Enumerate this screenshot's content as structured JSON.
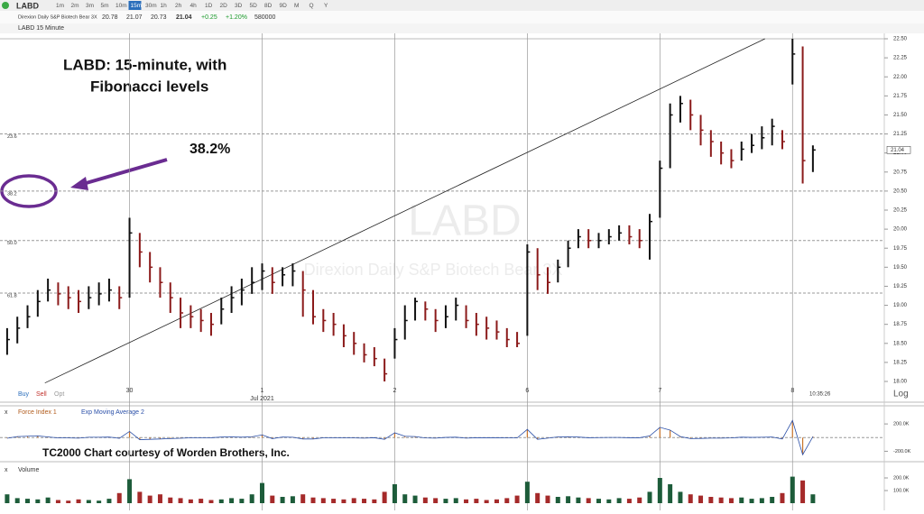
{
  "toolbar": {
    "symbol": "LABD",
    "timeframes": [
      "1m",
      "2m",
      "3m",
      "5m",
      "10m",
      "15m",
      "30m",
      "1h",
      "2h",
      "4h",
      "1D",
      "2D",
      "3D",
      "5D",
      "8D",
      "9D",
      "M",
      "Q",
      "Y"
    ],
    "active": 5
  },
  "quote": {
    "name": "Direxion Daily S&P Biotech Bear 3X",
    "fields": [
      "20.78",
      "21.07",
      "20.73",
      "21.04",
      "+0.25",
      "+1.20%",
      "580000"
    ]
  },
  "tab": "LABD 15 Minute",
  "chart_data": {
    "type": "ohlc",
    "watermark": [
      "LABD",
      "Direxion Daily S&P Biotech Bear 3X"
    ],
    "annotations": [
      "LABD:  15-minute, with",
      "Fibonacci levels",
      "38.2%"
    ],
    "credit": "TC2000 Chart courtesy of Worden Brothers, Inc.",
    "xlim": [
      -0.7,
      86
    ],
    "xticks": [
      {
        "value": 12,
        "label": "30"
      },
      {
        "value": 25,
        "label": "1"
      },
      {
        "value": 38,
        "label": "2"
      },
      {
        "value": 51,
        "label": "6"
      },
      {
        "value": 64,
        "label": "7"
      },
      {
        "value": 77,
        "label": "8"
      }
    ],
    "xtick_sublabel": "Jul 2021",
    "time": "10:35:26",
    "ylim": [
      18,
      22.5
    ],
    "yticks": [
      {
        "value": 22.5,
        "label": "22.50"
      },
      {
        "value": 22.25,
        "label": "22.25"
      },
      {
        "value": 22,
        "label": "22.00"
      },
      {
        "value": 21.75,
        "label": "21.75"
      },
      {
        "value": 21.5,
        "label": "21.50"
      },
      {
        "value": 21.25,
        "label": "21.25"
      },
      {
        "value": 21,
        "label": "21.00"
      },
      {
        "value": 20.75,
        "label": "20.75"
      },
      {
        "value": 20.5,
        "label": "20.50"
      },
      {
        "value": 20.25,
        "label": "20.25"
      },
      {
        "value": 20,
        "label": "20.00"
      },
      {
        "value": 19.75,
        "label": "19.75"
      },
      {
        "value": 19.5,
        "label": "19.50"
      },
      {
        "value": 19.25,
        "label": "19.25"
      },
      {
        "value": 19,
        "label": "19.00"
      },
      {
        "value": 18.75,
        "label": "18.75"
      },
      {
        "value": 18.5,
        "label": "18.50"
      },
      {
        "value": 18.25,
        "label": "18.25"
      },
      {
        "value": 18,
        "label": "18.00"
      }
    ],
    "scale_label": "Log",
    "fib_levels": [
      {
        "value": 21.25,
        "label": "23.6"
      },
      {
        "value": 20.5,
        "label": "38.2"
      },
      {
        "value": 19.85,
        "label": "50.0"
      },
      {
        "value": 19.16,
        "label": "61.8"
      }
    ],
    "trendline": {
      "x": [
        3.7,
        74.3
      ],
      "y": [
        17.98,
        22.5
      ]
    },
    "close": [
      18.55,
      18.7,
      18.85,
      19.05,
      19.2,
      19.15,
      19.1,
      19.05,
      19.1,
      19.15,
      19.2,
      19.1,
      19.95,
      19.7,
      19.5,
      19.3,
      19.1,
      18.9,
      18.85,
      18.8,
      18.75,
      18.95,
      19.1,
      19.2,
      19.3,
      19.45,
      19.3,
      19.4,
      19.45,
      19.2,
      18.85,
      18.8,
      18.75,
      18.6,
      18.5,
      18.35,
      18.3,
      18.1,
      18.55,
      18.8,
      19.05,
      18.95,
      18.8,
      18.85,
      19.0,
      18.8,
      18.75,
      18.7,
      18.65,
      18.55,
      18.5,
      19.7,
      19.4,
      19.3,
      19.5,
      19.75,
      19.9,
      19.85,
      19.85,
      19.9,
      19.95,
      19.9,
      19.85,
      20.1,
      20.8,
      21.5,
      21.65,
      21.5,
      21.3,
      21.15,
      21.0,
      20.9,
      21.05,
      21.1,
      21.2,
      21.35,
      21.15,
      22.3,
      20.9,
      21.04
    ],
    "high": [
      18.7,
      18.85,
      19.0,
      19.2,
      19.35,
      19.3,
      19.25,
      19.2,
      19.25,
      19.3,
      19.35,
      19.25,
      20.15,
      19.95,
      19.7,
      19.5,
      19.3,
      19.1,
      19.0,
      18.95,
      18.9,
      19.1,
      19.25,
      19.35,
      19.5,
      19.55,
      19.5,
      19.5,
      19.55,
      19.45,
      19.2,
      18.95,
      18.9,
      18.75,
      18.65,
      18.5,
      18.45,
      18.3,
      18.7,
      19.0,
      19.1,
      19.05,
      18.95,
      19.0,
      19.1,
      19.0,
      18.9,
      18.85,
      18.8,
      18.7,
      18.65,
      19.8,
      19.75,
      19.5,
      19.6,
      19.85,
      20.0,
      20.0,
      19.95,
      20.0,
      20.05,
      20.05,
      20.0,
      20.2,
      20.9,
      21.65,
      21.75,
      21.7,
      21.5,
      21.3,
      21.15,
      21.05,
      21.15,
      21.25,
      21.35,
      21.45,
      21.3,
      22.5,
      22.4,
      21.1
    ],
    "low": [
      18.35,
      18.5,
      18.7,
      18.85,
      19.05,
      19.0,
      18.95,
      18.9,
      18.95,
      19.0,
      19.05,
      18.95,
      19.1,
      19.5,
      19.3,
      19.1,
      18.9,
      18.7,
      18.7,
      18.65,
      18.6,
      18.75,
      18.9,
      19.0,
      19.15,
      19.2,
      19.15,
      19.25,
      19.25,
      18.85,
      18.75,
      18.65,
      18.6,
      18.45,
      18.35,
      18.25,
      18.2,
      18.0,
      18.3,
      18.55,
      18.8,
      18.8,
      18.65,
      18.7,
      18.8,
      18.7,
      18.6,
      18.55,
      18.55,
      18.45,
      18.45,
      18.6,
      19.2,
      19.15,
      19.3,
      19.5,
      19.75,
      19.75,
      19.75,
      19.8,
      19.85,
      19.8,
      19.75,
      19.6,
      20.15,
      20.8,
      21.4,
      21.3,
      21.1,
      20.95,
      20.85,
      20.8,
      20.9,
      21.0,
      21.05,
      21.1,
      21.05,
      21.9,
      20.6,
      20.75
    ],
    "force": {
      "names": [
        "Force Index 1",
        "Exp Moving Average 2"
      ],
      "ylim": [
        -300000,
        360000
      ],
      "yticks": [
        {
          "value": 200000,
          "label": "200.0K"
        },
        {
          "value": -200000,
          "label": "-200.0K"
        }
      ],
      "values": [
        -10000,
        15000,
        20000,
        25000,
        10000,
        -5000,
        -5000,
        -8000,
        5000,
        5000,
        8000,
        -10000,
        90000,
        -30000,
        -25000,
        -20000,
        -15000,
        -10000,
        -3000,
        -3000,
        -2000,
        8000,
        10000,
        6000,
        12000,
        40000,
        -15000,
        8000,
        5000,
        -20000,
        -20000,
        -3000,
        -3000,
        -5000,
        -5000,
        -8000,
        -2000,
        -25000,
        70000,
        20000,
        15000,
        -5000,
        -8000,
        3000,
        6000,
        -8000,
        -2000,
        -2000,
        -2000,
        -5000,
        -5000,
        120000,
        -25000,
        -8000,
        10000,
        12000,
        8000,
        -2000,
        0,
        2000,
        2000,
        -2000,
        -2000,
        25000,
        150000,
        110000,
        15000,
        -15000,
        -12000,
        -8000,
        -8000,
        -5000,
        6000,
        3000,
        5000,
        8000,
        -20000,
        250000,
        -250000,
        15000
      ]
    },
    "volume": {
      "name": "Volume",
      "ylim": [
        0,
        250000
      ],
      "yticks": [
        {
          "value": 200000,
          "label": "200.0K"
        },
        {
          "value": 100000,
          "label": "100.0K"
        }
      ],
      "values": [
        70000,
        40000,
        35000,
        30000,
        45000,
        25000,
        20000,
        30000,
        25000,
        20000,
        35000,
        80000,
        190000,
        90000,
        60000,
        70000,
        45000,
        40000,
        30000,
        35000,
        25000,
        30000,
        40000,
        35000,
        70000,
        160000,
        60000,
        50000,
        55000,
        70000,
        45000,
        40000,
        35000,
        30000,
        40000,
        35000,
        30000,
        90000,
        150000,
        70000,
        60000,
        45000,
        40000,
        35000,
        40000,
        30000,
        35000,
        25000,
        30000,
        40000,
        60000,
        170000,
        80000,
        60000,
        50000,
        55000,
        45000,
        40000,
        35000,
        30000,
        40000,
        35000,
        45000,
        90000,
        200000,
        150000,
        90000,
        70000,
        60000,
        50000,
        45000,
        40000,
        45000,
        35000,
        40000,
        50000,
        80000,
        210000,
        180000,
        70000
      ]
    },
    "trade_buttons": [
      "Buy",
      "Sell",
      "Opt"
    ]
  }
}
